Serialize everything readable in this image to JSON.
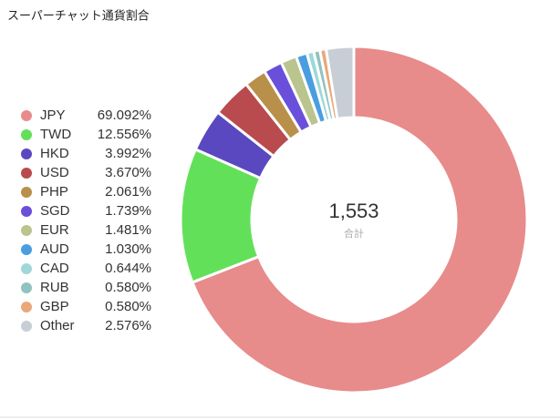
{
  "chart_data": {
    "type": "donut",
    "title": "スーパーチャット通貨割合",
    "categories": [
      "JPY",
      "TWD",
      "HKD",
      "USD",
      "PHP",
      "SGD",
      "EUR",
      "AUD",
      "CAD",
      "RUB",
      "GBP",
      "Other"
    ],
    "values": [
      69.092,
      12.556,
      3.992,
      3.67,
      2.061,
      1.739,
      1.481,
      1.03,
      0.644,
      0.58,
      0.58,
      2.576
    ],
    "value_labels": [
      "69.092%",
      "12.556%",
      "3.992%",
      "3.670%",
      "2.061%",
      "1.739%",
      "1.481%",
      "1.030%",
      "0.644%",
      "0.580%",
      "0.580%",
      "2.576%"
    ],
    "colors": [
      "#e88b8b",
      "#63e05a",
      "#5a48c0",
      "#b94a4e",
      "#b8904a",
      "#6a4fdb",
      "#b9c48e",
      "#4a9ee0",
      "#9ed8d8",
      "#8fc2c0",
      "#e8a878",
      "#c8ced6"
    ],
    "total": {
      "value": 1553,
      "label": "1,553"
    },
    "total_caption": "合計",
    "legend": "left"
  }
}
